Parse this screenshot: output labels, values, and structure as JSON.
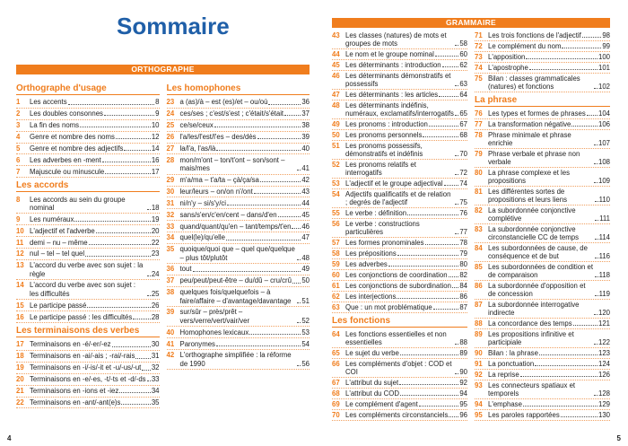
{
  "pages": [
    {
      "title": "Sommaire",
      "banner": "ORTHOGRAPHE",
      "page_number": "4",
      "columns": [
        [
          {
            "heading": "Orthographe d'usage",
            "entries": [
              {
                "num": 1,
                "text": "Les accents",
                "page": 8
              },
              {
                "num": 2,
                "text": "Les doubles consonnes",
                "page": 9
              },
              {
                "num": 3,
                "text": "La fin des noms",
                "page": 10
              },
              {
                "num": 4,
                "text": "Genre et nombre des noms",
                "page": 12
              },
              {
                "num": 5,
                "text": "Genre et nombre des adjectifs",
                "page": 14
              },
              {
                "num": 6,
                "text": "Les adverbes en -ment",
                "page": 16
              },
              {
                "num": 7,
                "text": "Majuscule ou minuscule",
                "page": 17
              }
            ]
          },
          {
            "heading": "Les accords",
            "entries": [
              {
                "num": 8,
                "text": "Les accords au sein du groupe nominal",
                "page": 18
              },
              {
                "num": 9,
                "text": "Les numéraux",
                "page": 19
              },
              {
                "num": 10,
                "text": "L'adjectif et l'adverbe",
                "page": 20
              },
              {
                "num": 11,
                "text": "demi – nu – même",
                "page": 22
              },
              {
                "num": 12,
                "text": "nul – tel – tel quel",
                "page": 23
              },
              {
                "num": 13,
                "text": "L'accord du verbe avec son sujet : la règle",
                "page": 24
              },
              {
                "num": 14,
                "text": "L'accord du verbe avec son sujet : les difficultés",
                "page": 25
              },
              {
                "num": 15,
                "text": "Le participe passé",
                "page": 26
              },
              {
                "num": 16,
                "text": "Le participe passé : les difficultés",
                "page": 28
              }
            ]
          },
          {
            "heading": "Les terminaisons des verbes",
            "entries": [
              {
                "num": 17,
                "text": "Terminaisons en -é/-er/-ez",
                "page": 30
              },
              {
                "num": 18,
                "text": "Terminaisons en -ai/-ais ; -rai/-rais",
                "page": 31
              },
              {
                "num": 19,
                "text": "Terminaisons en -i/-is/-it et -u/-us/-ut",
                "page": 32
              },
              {
                "num": 20,
                "text": "Terminaisons en -e/-es, -t/-ts et -d/-ds",
                "page": 33
              },
              {
                "num": 21,
                "text": "Terminaisons en -ions et -iez",
                "page": 34
              },
              {
                "num": 22,
                "text": "Terminaisons en -ant/-ant(e)s",
                "page": 35
              }
            ]
          }
        ],
        [
          {
            "heading": "Les homophones",
            "entries": [
              {
                "num": 23,
                "text": "a (as)/à – est (es)/et – ou/où",
                "page": 36
              },
              {
                "num": 24,
                "text": "ces/ses ; c'est/s'est ; c'était/s'était",
                "page": 37
              },
              {
                "num": 25,
                "text": "ce/se/ceux",
                "page": 38
              },
              {
                "num": 26,
                "text": "l'a/les/l'est/l'es – des/dès",
                "page": 39
              },
              {
                "num": 27,
                "text": "la/l'a, l'as/là",
                "page": 40
              },
              {
                "num": 28,
                "text": "mon/m'ont – ton/t'ont – son/sont – mais/mes",
                "page": 41
              },
              {
                "num": 29,
                "text": "m'a/ma – t'a/ta – çà/ça/sa",
                "page": 42
              },
              {
                "num": 30,
                "text": "leur/leurs – on/on n'/ont",
                "page": 43
              },
              {
                "num": 31,
                "text": "ni/n'y – si/s'y/ci",
                "page": 44
              },
              {
                "num": 32,
                "text": "sans/s'en/c'en/cent – dans/d'en",
                "page": 45
              },
              {
                "num": 33,
                "text": "quand/quant/qu'en – tant/temps/t'en",
                "page": 46
              },
              {
                "num": 34,
                "text": "quel(le)/qu'elle",
                "page": 47
              },
              {
                "num": 35,
                "text": "quoique/quoi que – quel que/quelque – plus tôt/plutôt",
                "page": 48
              },
              {
                "num": 36,
                "text": "tout",
                "page": 49
              },
              {
                "num": 37,
                "text": "peu/peut/peut-être – du/dû – cru/crû",
                "page": 50
              },
              {
                "num": 38,
                "text": "quelques fois/quelquefois – à faire/affaire – d'avantage/davantage",
                "page": 51
              },
              {
                "num": 39,
                "text": "sur/sûr – près/prêt – vers/verre/vert/vair/ver",
                "page": 52
              },
              {
                "num": 40,
                "text": "Homophones lexicaux",
                "page": 53
              },
              {
                "num": 41,
                "text": "Paronymes",
                "page": 54
              },
              {
                "num": 42,
                "text": "L'orthographe simplifiée : la réforme de 1990",
                "page": 56
              }
            ]
          }
        ]
      ]
    },
    {
      "banner": "GRAMMAIRE",
      "page_number": "5",
      "columns": [
        [
          {
            "entries": [
              {
                "num": 43,
                "text": "Les classes (natures) de mots et groupes de mots",
                "page": 58
              },
              {
                "num": 44,
                "text": "Le nom et le groupe nominal",
                "page": 60
              },
              {
                "num": 45,
                "text": "Les déterminants : introduction",
                "page": 62
              },
              {
                "num": 46,
                "text": "Les déterminants démonstratifs et possessifs",
                "page": 63
              },
              {
                "num": 47,
                "text": "Les déterminants : les articles",
                "page": 64
              },
              {
                "num": 48,
                "text": "Les déterminants indéfinis, numéraux, exclamatifs/interrogatifs",
                "page": 65
              },
              {
                "num": 49,
                "text": "Les pronoms : introduction",
                "page": 67
              },
              {
                "num": 50,
                "text": "Les pronoms personnels",
                "page": 68
              },
              {
                "num": 51,
                "text": "Les pronoms possessifs, démonstratifs et indéfinis",
                "page": 70
              },
              {
                "num": 52,
                "text": "Les pronoms relatifs et interrogatifs",
                "page": 72
              },
              {
                "num": 53,
                "text": "L'adjectif et le groupe adjectival",
                "page": 74
              },
              {
                "num": 54,
                "text": "Adjectifs qualificatifs et de relation ; degrés de l'adjectif",
                "page": 75
              },
              {
                "num": 55,
                "text": "Le verbe : définition",
                "page": 76
              },
              {
                "num": 56,
                "text": "Le verbe : constructions particulières",
                "page": 77
              },
              {
                "num": 57,
                "text": "Les formes pronominales",
                "page": 78
              },
              {
                "num": 58,
                "text": "Les prépositions",
                "page": 79
              },
              {
                "num": 59,
                "text": "Les adverbes",
                "page": 80
              },
              {
                "num": 60,
                "text": "Les conjonctions de coordination",
                "page": 82
              },
              {
                "num": 61,
                "text": "Les conjonctions de subordination",
                "page": 84
              },
              {
                "num": 62,
                "text": "Les interjections",
                "page": 86
              },
              {
                "num": 63,
                "text": "Que : un mot problématique",
                "page": 87
              }
            ]
          },
          {
            "heading": "Les fonctions",
            "entries": [
              {
                "num": 64,
                "text": "Les fonctions essentielles et non essentielles",
                "page": 88
              },
              {
                "num": 65,
                "text": "Le sujet du verbe",
                "page": 89
              },
              {
                "num": 66,
                "text": "Les compléments d'objet : COD et COI",
                "page": 90
              },
              {
                "num": 67,
                "text": "L'attribut du sujet",
                "page": 92
              },
              {
                "num": 68,
                "text": "L'attribut du COD",
                "page": 94
              },
              {
                "num": 69,
                "text": "Le complément d'agent",
                "page": 95
              },
              {
                "num": 70,
                "text": "Les compléments circonstanciels",
                "page": 96
              }
            ]
          }
        ],
        [
          {
            "entries": [
              {
                "num": 71,
                "text": "Les trois fonctions de l'adjectif",
                "page": 98
              },
              {
                "num": 72,
                "text": "Le complément du nom",
                "page": 99
              },
              {
                "num": 73,
                "text": "L'apposition",
                "page": 100
              },
              {
                "num": 74,
                "text": "L'apostrophe",
                "page": 101
              },
              {
                "num": 75,
                "text": "Bilan : classes grammaticales (natures) et fonctions",
                "page": 102
              }
            ]
          },
          {
            "heading": "La phrase",
            "entries": [
              {
                "num": 76,
                "text": "Les types et formes de phrases",
                "page": 104
              },
              {
                "num": 77,
                "text": "La transformation négative",
                "page": 106
              },
              {
                "num": 78,
                "text": "Phrase minimale et phrase enrichie",
                "page": 107
              },
              {
                "num": 79,
                "text": "Phrase verbale et phrase non verbale",
                "page": 108
              },
              {
                "num": 80,
                "text": "La phrase complexe et les propositions",
                "page": 109
              },
              {
                "num": 81,
                "text": "Les différentes sortes de propositions et leurs liens",
                "page": 110
              },
              {
                "num": 82,
                "text": "La subordonnée conjonctive complétive",
                "page": 111
              },
              {
                "num": 83,
                "text": "La subordonnée conjonctive circonstancielle CC de temps",
                "page": 114
              },
              {
                "num": 84,
                "text": "Les subordonnées de cause, de conséquence et de but",
                "page": 116
              },
              {
                "num": 85,
                "text": "Les subordonnées de condition et de comparaison",
                "page": 118
              },
              {
                "num": 86,
                "text": "La subordonnée d'opposition et de concession",
                "page": 119
              },
              {
                "num": 87,
                "text": "La subordonnée interrogative indirecte",
                "page": 120
              },
              {
                "num": 88,
                "text": "La concordance des temps",
                "page": 121
              },
              {
                "num": 89,
                "text": "Les propositions infinitive et participiale",
                "page": 122
              },
              {
                "num": 90,
                "text": "Bilan : la phrase",
                "page": 123
              },
              {
                "num": 91,
                "text": "La ponctuation",
                "page": 124
              },
              {
                "num": 92,
                "text": "La reprise",
                "page": 126
              },
              {
                "num": 93,
                "text": "Les connecteurs spatiaux et temporels",
                "page": 128
              },
              {
                "num": 94,
                "text": "L'emphase",
                "page": 129
              },
              {
                "num": 95,
                "text": "Les paroles rapportées",
                "page": 130
              }
            ]
          }
        ]
      ]
    }
  ]
}
